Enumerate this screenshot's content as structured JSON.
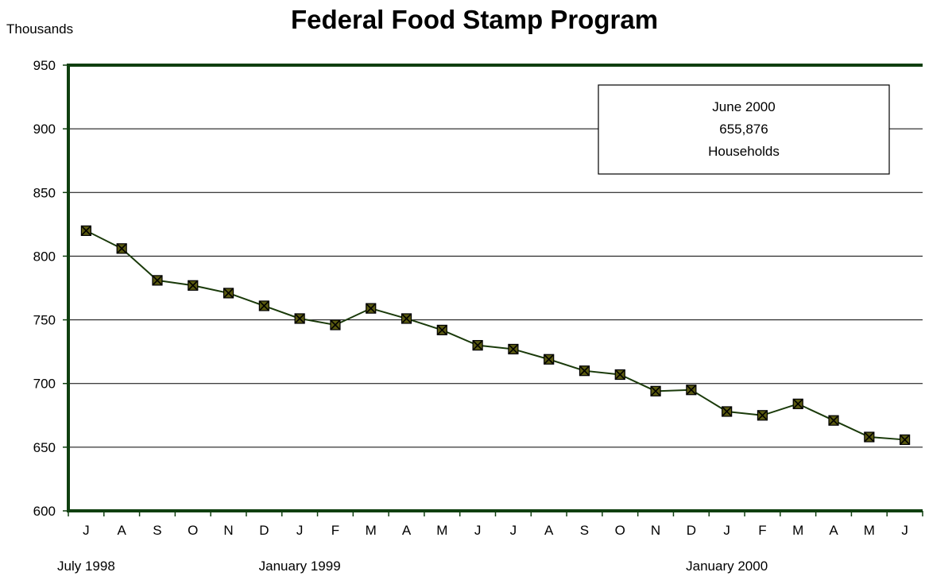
{
  "chart_data": {
    "type": "line",
    "title": "Federal Food Stamp Program",
    "ylabel": "Thousands",
    "xlabel": "",
    "ylim": [
      600,
      950
    ],
    "yticks": [
      600,
      650,
      700,
      750,
      800,
      850,
      900,
      950
    ],
    "grid": true,
    "legend": "none",
    "categories": [
      "J",
      "A",
      "S",
      "O",
      "N",
      "D",
      "J",
      "F",
      "M",
      "A",
      "M",
      "J",
      "J",
      "A",
      "S",
      "O",
      "N",
      "D",
      "J",
      "F",
      "M",
      "A",
      "M",
      "J"
    ],
    "period_labels": [
      {
        "label": "July 1998",
        "index": 0
      },
      {
        "label": "January 1999",
        "index": 6
      },
      {
        "label": "January 2000",
        "index": 18
      }
    ],
    "series": [
      {
        "values": [
          820,
          806,
          781,
          777,
          771,
          761,
          751,
          746,
          759,
          751,
          742,
          730,
          727,
          719,
          710,
          707,
          694,
          695,
          678,
          675,
          684,
          671,
          658,
          655.876
        ]
      }
    ],
    "annotation": {
      "lines": [
        "June 2000",
        "655,876",
        "Households"
      ]
    },
    "colors": {
      "line": "#1a3a0a",
      "marker_fill": "#5a5a10",
      "axis": "#0f3f0f",
      "grid": "#000000"
    }
  }
}
